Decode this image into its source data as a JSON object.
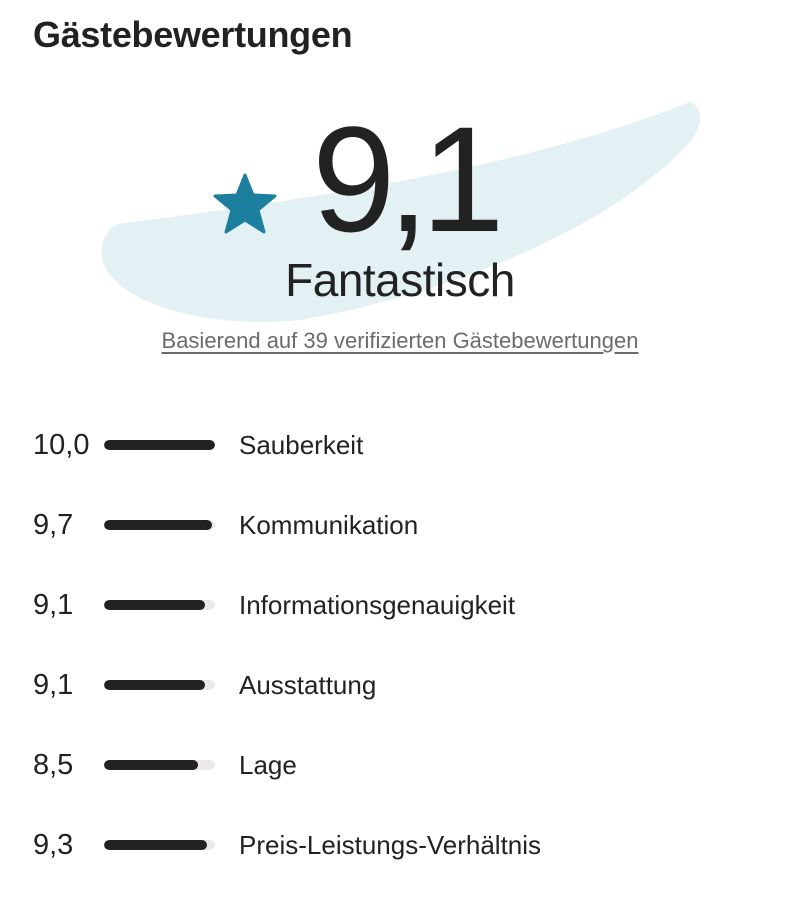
{
  "header": {
    "title": "Gästebewertungen"
  },
  "summary": {
    "score": "9,1",
    "label": "Fantastisch",
    "based_on": "Basierend auf 39 verifizierten Gästebewertungen",
    "star_icon": "star-icon",
    "star_color": "#1c7f9d",
    "swoosh_color": "#e3f0f4"
  },
  "ratings": [
    {
      "value": "10,0",
      "name": "Sauberkeit",
      "score": 10.0
    },
    {
      "value": "9,7",
      "name": "Kommunikation",
      "score": 9.7
    },
    {
      "value": "9,1",
      "name": "Informationsgenauigkeit",
      "score": 9.1
    },
    {
      "value": "9,1",
      "name": "Ausstattung",
      "score": 9.1
    },
    {
      "value": "8,5",
      "name": "Lage",
      "score": 8.5
    },
    {
      "value": "9,3",
      "name": "Preis-Leistungs-Verhältnis",
      "score": 9.3
    }
  ],
  "ratings_max": 10
}
